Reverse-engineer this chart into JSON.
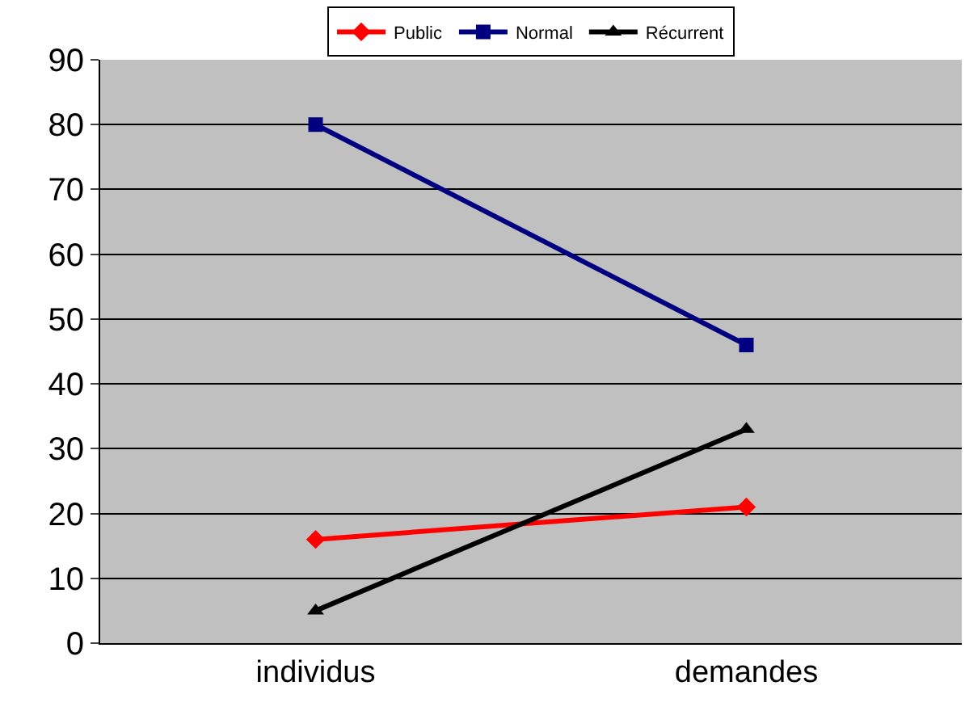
{
  "chart_data": {
    "type": "line",
    "categories": [
      "individus",
      "demandes"
    ],
    "series": [
      {
        "name": "Public",
        "color": "#ff0000",
        "marker": "diamond",
        "values": [
          16,
          21
        ]
      },
      {
        "name": "Normal",
        "color": "#000080",
        "marker": "square",
        "values": [
          80,
          46
        ]
      },
      {
        "name": "Récurrent",
        "color": "#000000",
        "marker": "triangle",
        "values": [
          5,
          33
        ]
      }
    ],
    "ylim": [
      0,
      90
    ],
    "yticks": [
      0,
      10,
      20,
      30,
      40,
      50,
      60,
      70,
      80,
      90
    ],
    "grid": "y",
    "legend": "top"
  }
}
